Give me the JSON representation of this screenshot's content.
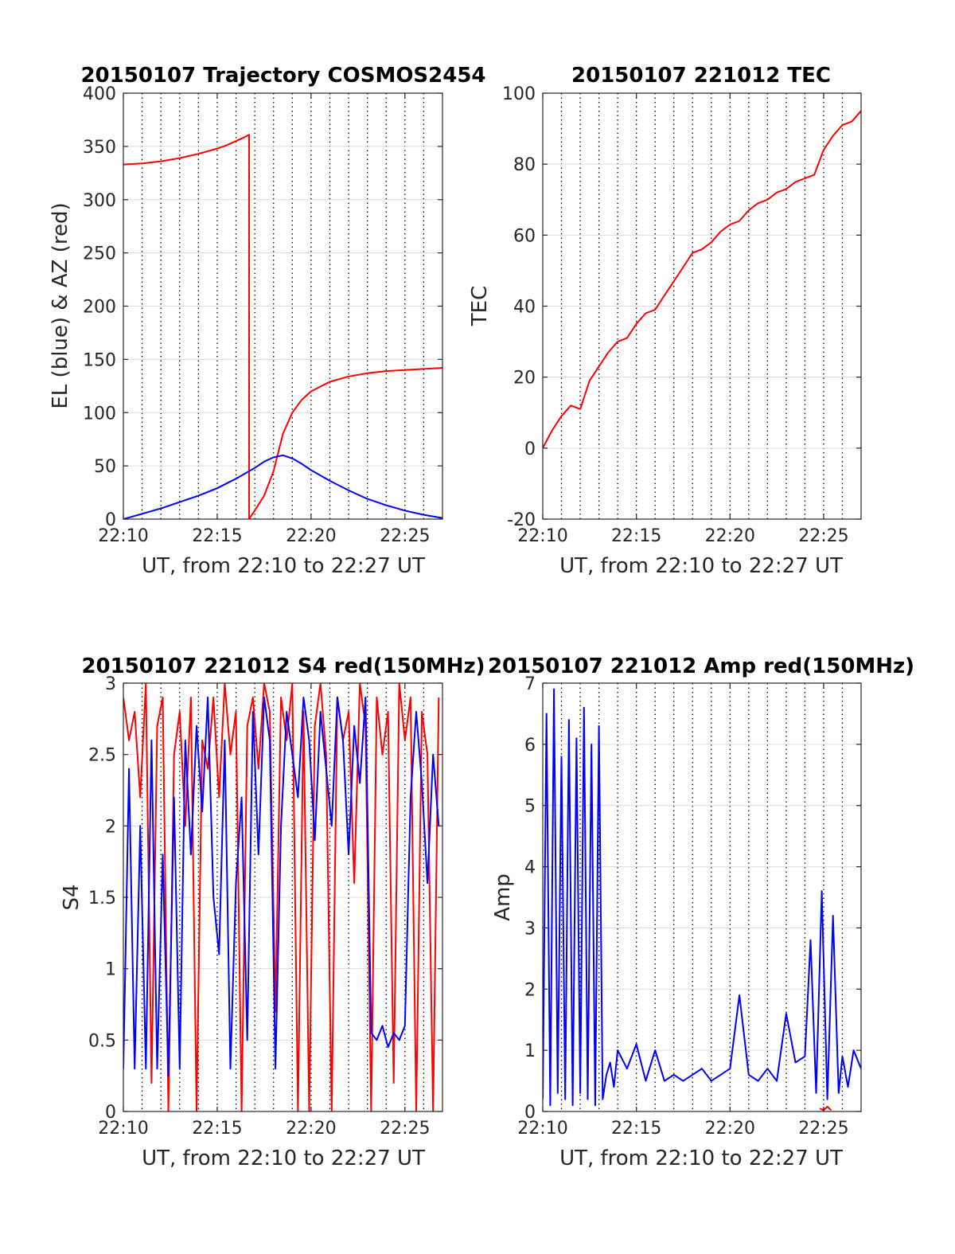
{
  "chart_data": [
    {
      "type": "line",
      "title": "20150107 Trajectory COSMOS2454",
      "xlabel": "UT, from 22:10 to 22:27 UT",
      "ylabel": "EL (blue) & AZ (red)",
      "xlim": [
        0,
        17
      ],
      "ylim": [
        0,
        400
      ],
      "xticks": [
        0,
        5,
        10,
        15
      ],
      "xtick_labels": [
        "22:10",
        "22:15",
        "22:20",
        "22:25"
      ],
      "yticks": [
        0,
        50,
        100,
        150,
        200,
        250,
        300,
        350,
        400
      ],
      "ytick_labels": [
        "0",
        "50",
        "100",
        "150",
        "200",
        "250",
        "300",
        "350",
        "400"
      ],
      "grid": true,
      "series": [
        {
          "color": "#ff0000",
          "x": [
            0,
            1,
            2,
            3,
            4,
            5,
            5.5,
            6,
            6.5,
            6.7,
            6.7,
            7,
            7.5,
            8,
            8.5,
            9,
            9.5,
            10,
            11,
            12,
            13,
            14,
            15,
            16,
            17
          ],
          "y": [
            333,
            334,
            336,
            339,
            343,
            348,
            351,
            355,
            359,
            361,
            0,
            8,
            22,
            45,
            80,
            100,
            112,
            120,
            129,
            134,
            137,
            139,
            140,
            141,
            142
          ]
        },
        {
          "color": "#0000ff",
          "x": [
            0,
            1,
            2,
            3,
            4,
            5,
            6,
            7,
            7.5,
            8,
            8.5,
            9,
            9.5,
            10,
            11,
            12,
            13,
            14,
            15,
            16,
            17
          ],
          "y": [
            0,
            5,
            10,
            16,
            22,
            29,
            38,
            48,
            54,
            58,
            60,
            57,
            52,
            46,
            36,
            27,
            19,
            13,
            8,
            4,
            1
          ]
        }
      ]
    },
    {
      "type": "line",
      "title": "20150107 221012 TEC",
      "xlabel": "UT, from 22:10 to 22:27 UT",
      "ylabel": "TEC",
      "xlim": [
        0,
        17
      ],
      "ylim": [
        -20,
        100
      ],
      "xticks": [
        0,
        5,
        10,
        15
      ],
      "xtick_labels": [
        "22:10",
        "22:15",
        "22:20",
        "22:25"
      ],
      "yticks": [
        -20,
        0,
        20,
        40,
        60,
        80,
        100
      ],
      "ytick_labels": [
        "-20",
        "0",
        "20",
        "40",
        "60",
        "80",
        "100"
      ],
      "grid": true,
      "series": [
        {
          "color": "#ff0000",
          "x": [
            0,
            0.5,
            1,
            1.5,
            2,
            2.5,
            3,
            3.5,
            4,
            4.5,
            5,
            5.5,
            6,
            6.5,
            7,
            7.5,
            8,
            8.5,
            9,
            9.5,
            10,
            10.5,
            11,
            11.5,
            12,
            12.5,
            13,
            13.5,
            14,
            14.5,
            15,
            15.5,
            16,
            16.5,
            17
          ],
          "y": [
            0,
            5,
            9,
            12,
            11,
            19,
            23,
            27,
            30,
            31,
            35,
            38,
            39,
            43,
            47,
            51,
            55,
            56,
            58,
            61,
            63,
            64,
            67,
            69,
            70,
            72,
            73,
            75,
            76,
            77,
            84,
            88,
            91,
            92,
            95
          ]
        }
      ]
    },
    {
      "type": "line",
      "title": "20150107 221012 S4 red(150MHz)",
      "xlabel": "UT, from 22:10 to 22:27 UT",
      "ylabel": "S4",
      "xlim": [
        0,
        17
      ],
      "ylim": [
        0,
        3
      ],
      "xticks": [
        0,
        5,
        10,
        15
      ],
      "xtick_labels": [
        "22:10",
        "22:15",
        "22:20",
        "22:25"
      ],
      "yticks": [
        0,
        0.5,
        1,
        1.5,
        2,
        2.5,
        3
      ],
      "ytick_labels": [
        "0",
        "0.5",
        "1",
        "1.5",
        "2",
        "2.5",
        "3"
      ],
      "grid": true,
      "series": [
        {
          "color": "#ff0000",
          "x": [
            0,
            0.3,
            0.6,
            0.9,
            1.2,
            1.5,
            1.8,
            2.1,
            2.4,
            2.7,
            3.0,
            3.3,
            3.6,
            3.9,
            4.2,
            4.5,
            4.8,
            5.1,
            5.4,
            5.7,
            6.0,
            6.3,
            6.6,
            6.9,
            7.2,
            7.5,
            7.8,
            8.1,
            8.4,
            8.7,
            9.0,
            9.3,
            9.6,
            9.9,
            10.2,
            10.5,
            10.8,
            11.1,
            11.4,
            11.7,
            12.0,
            12.3,
            12.6,
            12.9,
            13.2,
            13.5,
            13.8,
            14.1,
            14.4,
            14.7,
            15.0,
            15.3,
            15.6,
            15.9,
            16.2,
            16.5,
            16.8
          ],
          "y": [
            2.9,
            2.6,
            2.8,
            2.2,
            3.0,
            0.2,
            2.7,
            2.9,
            0.0,
            2.5,
            2.8,
            2.0,
            2.9,
            0.0,
            2.6,
            2.4,
            2.9,
            2.2,
            3.0,
            2.5,
            2.8,
            0.0,
            2.7,
            2.9,
            2.4,
            3.0,
            2.8,
            0.7,
            2.9,
            2.6,
            3.0,
            0.0,
            2.8,
            0.0,
            2.7,
            3.0,
            2.5,
            0.0,
            2.9,
            2.6,
            2.8,
            1.6,
            3.0,
            2.7,
            0.0,
            2.9,
            2.5,
            2.8,
            0.2,
            3.0,
            2.6,
            2.9,
            0.0,
            2.8,
            2.5,
            0.0,
            2.9
          ]
        },
        {
          "color": "#0000ff",
          "x": [
            0,
            0.3,
            0.6,
            0.9,
            1.2,
            1.5,
            1.8,
            2.1,
            2.4,
            2.7,
            3.0,
            3.3,
            3.6,
            3.9,
            4.2,
            4.5,
            4.8,
            5.1,
            5.4,
            5.7,
            6.0,
            6.3,
            6.6,
            6.9,
            7.2,
            7.5,
            7.8,
            8.1,
            8.4,
            8.7,
            9.0,
            9.3,
            9.6,
            9.9,
            10.2,
            10.5,
            10.8,
            11.1,
            11.4,
            11.7,
            12.0,
            12.3,
            12.6,
            12.9,
            13.2,
            13.5,
            13.8,
            14.1,
            14.4,
            14.7,
            15.0,
            15.3,
            15.6,
            15.9,
            16.2,
            16.5,
            16.8
          ],
          "y": [
            0.3,
            2.4,
            0.3,
            2.0,
            0.3,
            2.6,
            0.3,
            1.8,
            0.25,
            2.2,
            0.3,
            2.6,
            1.8,
            2.7,
            2.1,
            2.9,
            1.5,
            1.1,
            2.6,
            0.3,
            1.6,
            2.2,
            0.5,
            2.8,
            1.8,
            2.9,
            2.6,
            0.3,
            2.0,
            2.8,
            2.5,
            2.2,
            2.9,
            2.6,
            1.9,
            2.8,
            2.4,
            2.0,
            2.9,
            2.6,
            1.8,
            2.7,
            2.3,
            2.9,
            0.55,
            0.5,
            0.6,
            0.45,
            0.55,
            0.5,
            0.6,
            2.2,
            2.8,
            2.3,
            1.6,
            2.5,
            2.0
          ]
        }
      ]
    },
    {
      "type": "line",
      "title": "20150107 221012 Amp red(150MHz)",
      "xlabel": "UT, from 22:10 to 22:27 UT",
      "ylabel": "Amp",
      "xlim": [
        0,
        17
      ],
      "ylim": [
        0,
        7
      ],
      "xticks": [
        0,
        5,
        10,
        15
      ],
      "xtick_labels": [
        "22:10",
        "22:15",
        "22:20",
        "22:25"
      ],
      "yticks": [
        0,
        1,
        2,
        3,
        4,
        5,
        6,
        7
      ],
      "ytick_labels": [
        "0",
        "1",
        "2",
        "3",
        "4",
        "5",
        "6",
        "7"
      ],
      "grid": true,
      "series": [
        {
          "color": "#ff0000",
          "x": [
            14.8,
            15.0,
            15.2,
            15.4
          ],
          "y": [
            0.05,
            0.02,
            0.08,
            0.02
          ]
        },
        {
          "color": "#0000ff",
          "x": [
            0,
            0.2,
            0.4,
            0.6,
            0.8,
            1.0,
            1.2,
            1.4,
            1.6,
            1.8,
            2.0,
            2.2,
            2.4,
            2.6,
            2.8,
            3.0,
            3.2,
            3.4,
            3.6,
            3.8,
            4.0,
            4.5,
            5.0,
            5.5,
            6.0,
            6.5,
            7.0,
            7.5,
            8.0,
            8.5,
            9.0,
            9.5,
            10.0,
            10.5,
            11.0,
            11.5,
            12.0,
            12.5,
            13.0,
            13.5,
            14.0,
            14.3,
            14.6,
            14.9,
            15.2,
            15.5,
            15.8,
            16.0,
            16.3,
            16.6,
            17.0
          ],
          "y": [
            0.2,
            6.5,
            0.1,
            6.9,
            0.3,
            5.8,
            0.2,
            6.4,
            0.1,
            6.1,
            0.3,
            6.6,
            0.2,
            6.0,
            0.1,
            6.3,
            0.2,
            0.6,
            0.8,
            0.4,
            1.0,
            0.7,
            1.1,
            0.5,
            1.0,
            0.5,
            0.6,
            0.5,
            0.6,
            0.7,
            0.5,
            0.6,
            0.7,
            1.9,
            0.6,
            0.5,
            0.7,
            0.5,
            1.6,
            0.8,
            0.9,
            2.8,
            0.3,
            3.6,
            0.2,
            3.2,
            0.3,
            0.9,
            0.4,
            1.0,
            0.7
          ]
        }
      ]
    }
  ]
}
